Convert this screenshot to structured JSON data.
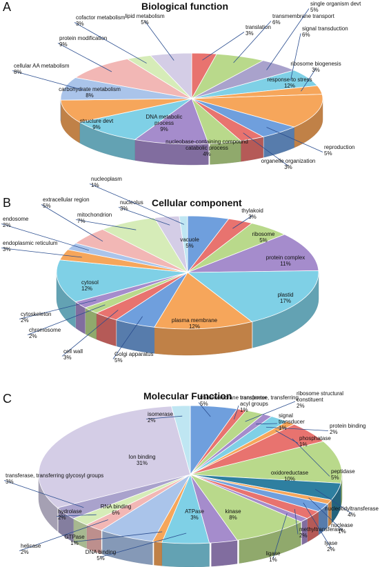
{
  "chart_data": [
    {
      "type": "pie",
      "panel": "A",
      "title": "Biological function",
      "slices": [
        {
          "label": "translation",
          "value": 3,
          "color": "#e8736f"
        },
        {
          "label": "transmembrane transport",
          "value": 6,
          "color": "#b9d98b"
        },
        {
          "label": "single organism devt",
          "value": 5,
          "color": "#a9a2cc"
        },
        {
          "label": "signal transduction",
          "value": 6,
          "color": "#7fd0e6"
        },
        {
          "label": "ribosome biogenesis",
          "value": 3,
          "color": "#f6a65b"
        },
        {
          "label": "response to stress",
          "value": 12,
          "color": "#f6a65b"
        },
        {
          "label": "reproduction",
          "value": 5,
          "color": "#6f9fdd"
        },
        {
          "label": "organelle organization",
          "value": 3,
          "color": "#e8736f"
        },
        {
          "label": "nucleobase-containing compound catabolic process",
          "value": 4,
          "color": "#b9d98b"
        },
        {
          "label": "DNA metabolic process",
          "value": 9,
          "color": "#a58ccc"
        },
        {
          "label": "structure devt",
          "value": 9,
          "color": "#7fd0e6"
        },
        {
          "label": "carbohydrate metabolism",
          "value": 8,
          "color": "#f6a65b"
        },
        {
          "label": "cellular AA metabolism",
          "value": 8,
          "color": "#aac4ea"
        },
        {
          "label": "protein modification",
          "value": 9,
          "color": "#f2b7b5"
        },
        {
          "label": "cofactor metabolism",
          "value": 3,
          "color": "#d6ecb8"
        },
        {
          "label": "lipid metabolism",
          "value": 5,
          "color": "#d4cde6"
        }
      ]
    },
    {
      "type": "pie",
      "panel": "B",
      "title": "Cellular component",
      "slices": [
        {
          "label": "vacuole",
          "value": 5,
          "color": "#6f9fdd"
        },
        {
          "label": "thylakoid",
          "value": 3,
          "color": "#e8736f"
        },
        {
          "label": "ribosome",
          "value": 5,
          "color": "#b9d98b"
        },
        {
          "label": "protein complex",
          "value": 11,
          "color": "#a58ccc"
        },
        {
          "label": "plastid",
          "value": 17,
          "color": "#7fd0e6"
        },
        {
          "label": "plasma membrane",
          "value": 12,
          "color": "#f6a65b"
        },
        {
          "label": "Golgi apparatus",
          "value": 5,
          "color": "#6f9fdd"
        },
        {
          "label": "cell wall",
          "value": 3,
          "color": "#e8736f"
        },
        {
          "label": "chromosome",
          "value": 2,
          "color": "#b9d98b"
        },
        {
          "label": "cytoskeleton",
          "value": 2,
          "color": "#a58ccc"
        },
        {
          "label": "cytosol",
          "value": 12,
          "color": "#7fd0e6"
        },
        {
          "label": "endoplasmic reticulum",
          "value": 3,
          "color": "#f6a65b"
        },
        {
          "label": "endosome",
          "value": 2,
          "color": "#aac4ea"
        },
        {
          "label": "extracellular region",
          "value": 5,
          "color": "#f2b7b5"
        },
        {
          "label": "mitochondrion",
          "value": 7,
          "color": "#d6ecb8"
        },
        {
          "label": "nucleolus",
          "value": 3,
          "color": "#d4cde6"
        },
        {
          "label": "nucleoplasm",
          "value": 1,
          "color": "#bfe6f2"
        }
      ]
    },
    {
      "type": "pie",
      "panel": "C",
      "title": "Molecular Function",
      "slices": [
        {
          "label": "transmembrane transporter",
          "value": 5,
          "color": "#6f9fdd"
        },
        {
          "label": "transferase, transferring acyl groups",
          "value": 1,
          "color": "#e8736f"
        },
        {
          "label": "ribosome structural constituent",
          "value": 2,
          "color": "#b9d98b"
        },
        {
          "label": "signal transducer",
          "value": 1,
          "color": "#a58ccc"
        },
        {
          "label": "protein binding",
          "value": 2,
          "color": "#7fd0e6"
        },
        {
          "label": "phosphatase",
          "value": 1,
          "color": "#f6a65b"
        },
        {
          "label": "peptidase",
          "value": 5,
          "color": "#e8736f"
        },
        {
          "label": "oxidoreductase",
          "value": 10,
          "color": "#b9d98b"
        },
        {
          "label": "nucleotidyltransferase",
          "value": 4,
          "color": "#2e7fa0"
        },
        {
          "label": "nuclease",
          "value": 1,
          "color": "#f6a65b"
        },
        {
          "label": "lyase",
          "value": 2,
          "color": "#6f9fdd"
        },
        {
          "label": "methyltransferase",
          "value": 2,
          "color": "#e8736f"
        },
        {
          "label": "ligase",
          "value": 1,
          "color": "#a58ccc"
        },
        {
          "label": "kinase",
          "value": 8,
          "color": "#b9d98b"
        },
        {
          "label": "ATPase",
          "value": 3,
          "color": "#a58ccc"
        },
        {
          "label": "DNA binding",
          "value": 5,
          "color": "#7fd0e6"
        },
        {
          "label": "GTPase",
          "value": 1,
          "color": "#f6a65b"
        },
        {
          "label": "RNA binding",
          "value": 6,
          "color": "#aac4ea"
        },
        {
          "label": "helicase",
          "value": 2,
          "color": "#f2b7b5"
        },
        {
          "label": "hydrolase",
          "value": 2,
          "color": "#d6ecb8"
        },
        {
          "label": "transferase, transferring glycosyl groups",
          "value": 3,
          "color": "#a9a2cc"
        },
        {
          "label": "Ion binding",
          "value": 31,
          "color": "#d4cde6"
        },
        {
          "label": "isomerase",
          "value": 2,
          "color": "#bfe6f2"
        }
      ]
    }
  ]
}
